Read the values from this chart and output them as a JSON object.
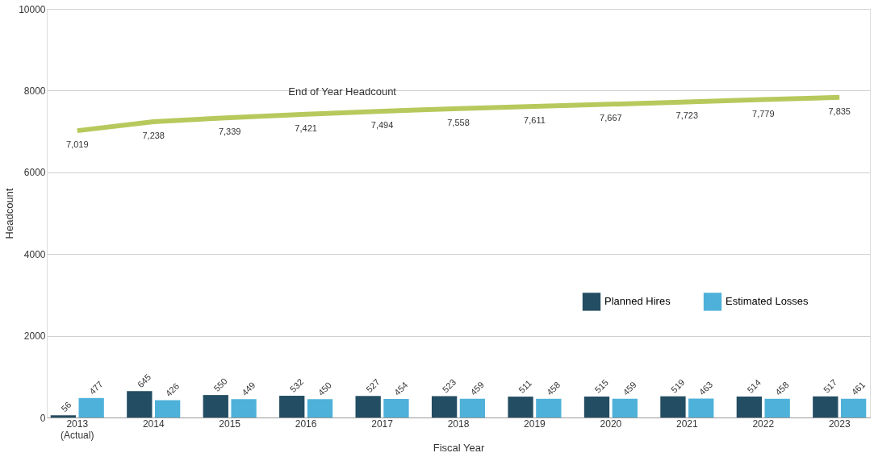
{
  "chart_data": {
    "type": "bar",
    "xlabel": "Fiscal Year",
    "ylabel": "Headcount",
    "categories": [
      "2013\n(Actual)",
      "2014",
      "2015",
      "2016",
      "2017",
      "2018",
      "2019",
      "2020",
      "2021",
      "2022",
      "2023"
    ],
    "series": [
      {
        "name": "Planned Hires",
        "color": "#234d62",
        "values": [
          56,
          645,
          550,
          532,
          527,
          523,
          511,
          515,
          519,
          514,
          517
        ]
      },
      {
        "name": "Estimated Losses",
        "color": "#4eb1d9",
        "values": [
          477,
          426,
          449,
          450,
          454,
          459,
          458,
          459,
          463,
          458,
          461
        ]
      },
      {
        "name": "End of Year Headcount",
        "type": "line",
        "color": "#b7c95c",
        "values": [
          7019,
          7238,
          7339,
          7421,
          7494,
          7558,
          7611,
          7667,
          7723,
          7779,
          7835
        ],
        "value_labels": [
          "7,019",
          "7,238",
          "7,339",
          "7,421",
          "7,494",
          "7,558",
          "7,611",
          "7,667",
          "7,723",
          "7,779",
          "7,835"
        ]
      }
    ],
    "ylim": [
      0,
      10000
    ],
    "yticks": [
      0,
      2000,
      4000,
      6000,
      8000,
      10000
    ],
    "grid": "y",
    "legend": "bottom right",
    "data_labels": true
  }
}
